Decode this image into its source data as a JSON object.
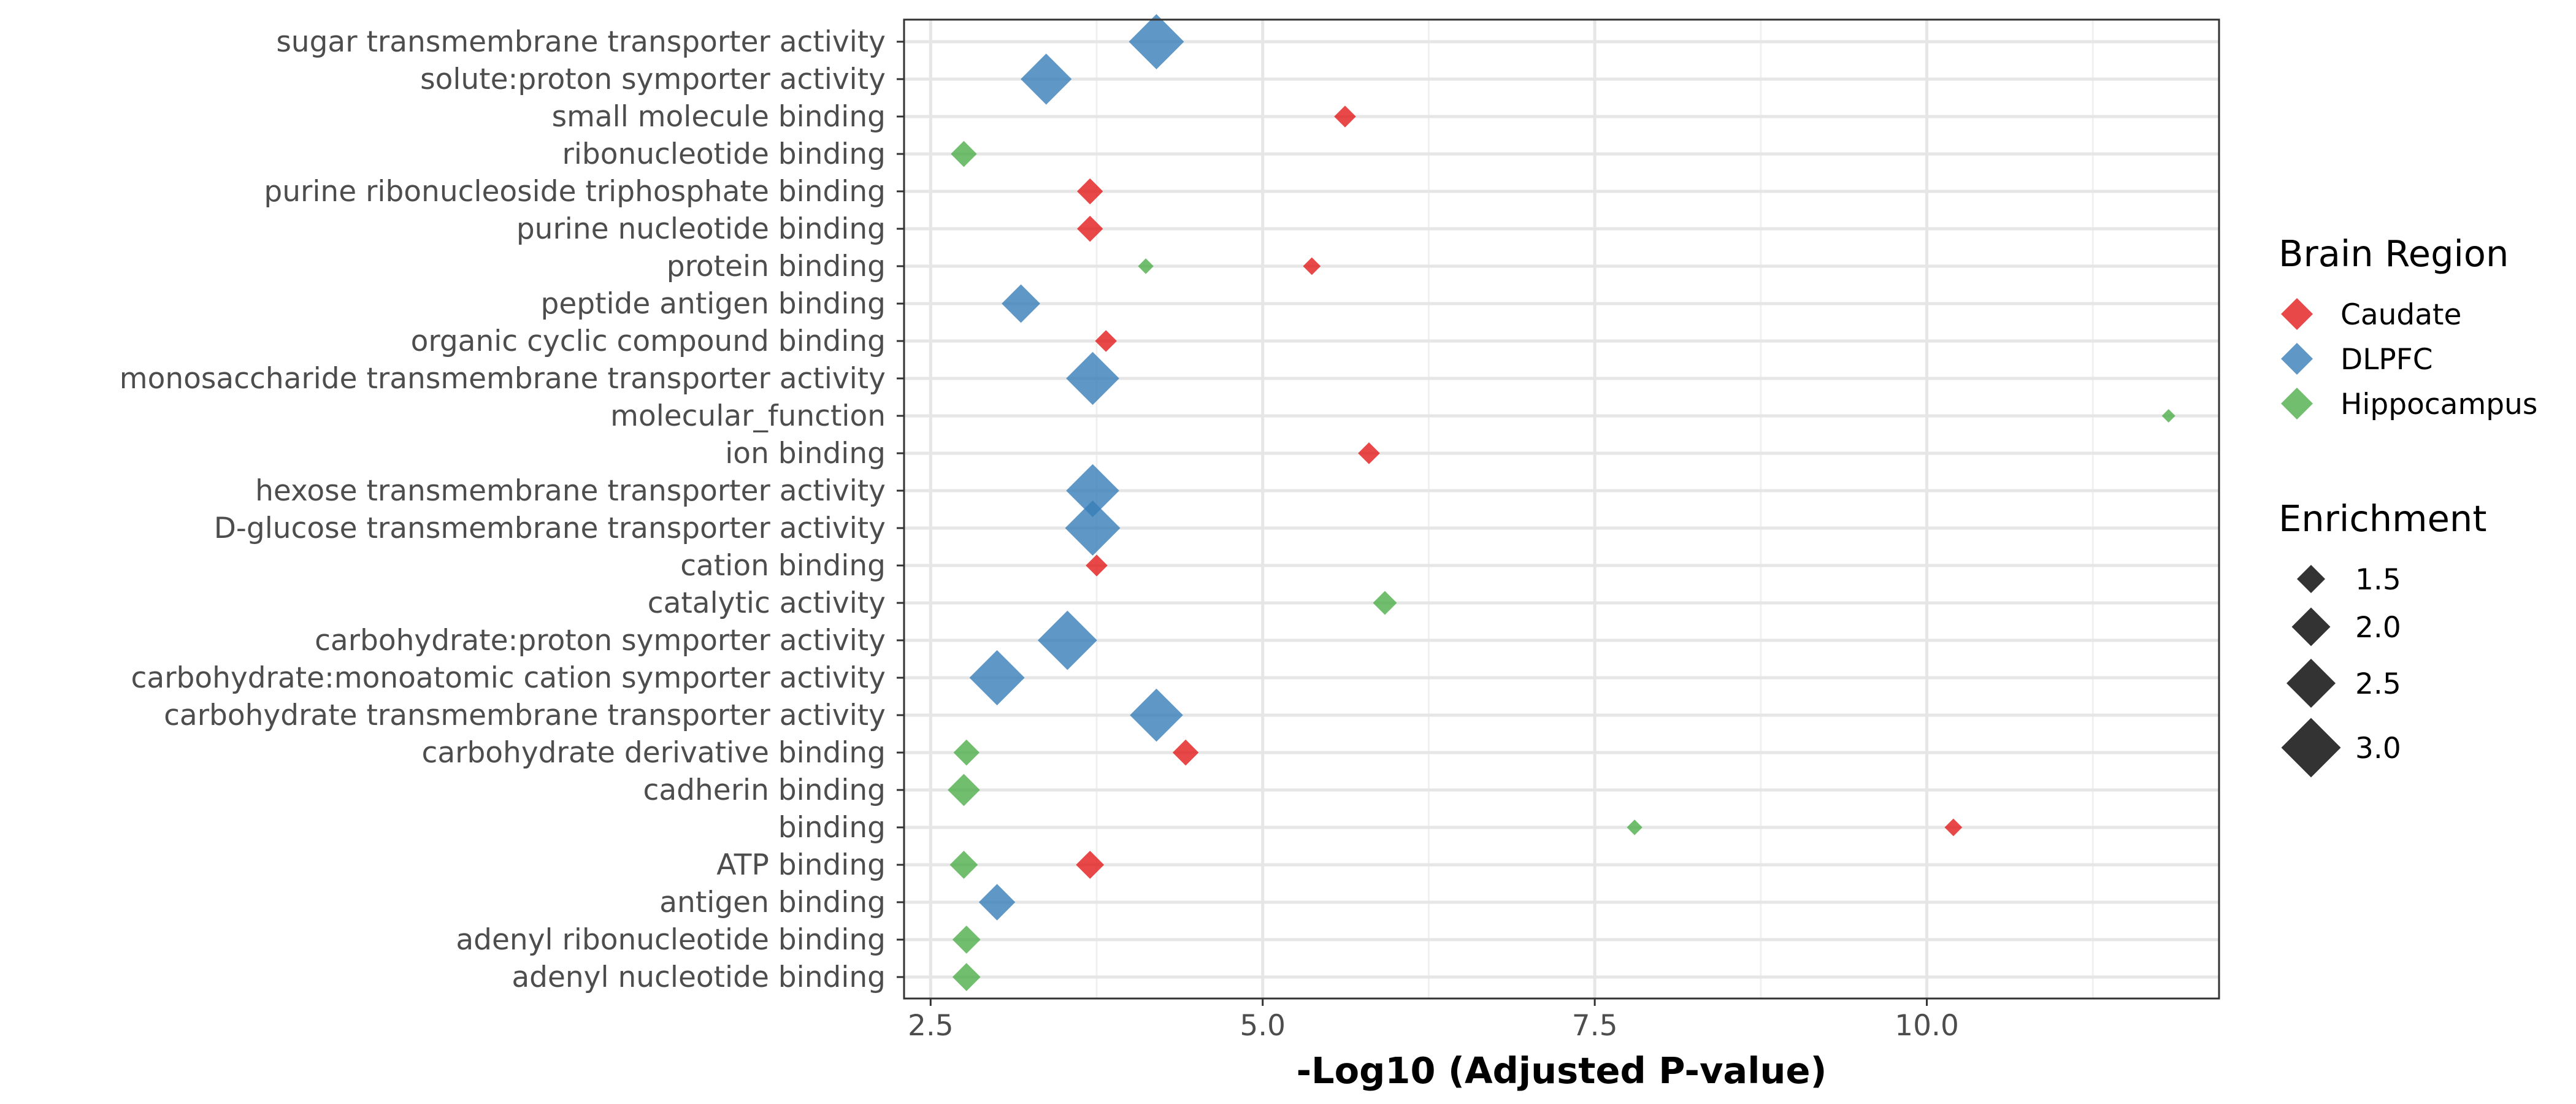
{
  "chart_data": {
    "type": "scatter",
    "xlabel": "-Log10 (Adjusted P-value)",
    "xlim": [
      2.3,
      12.2
    ],
    "x_ticks": [
      "2.5",
      "5.0",
      "7.5",
      "10.0"
    ],
    "x_tick_values": [
      2.5,
      5.0,
      7.5,
      10.0
    ],
    "grid": true,
    "legend_position": "right",
    "categories": [
      "sugar transmembrane transporter activity",
      "solute:proton symporter activity",
      "small molecule binding",
      "ribonucleotide binding",
      "purine ribonucleoside triphosphate binding",
      "purine nucleotide binding",
      "protein binding",
      "peptide antigen binding",
      "organic cyclic compound binding",
      "monosaccharide transmembrane transporter activity",
      "molecular_function",
      "ion binding",
      "hexose transmembrane transporter activity",
      "D-glucose transmembrane transporter activity",
      "cation binding",
      "catalytic activity",
      "carbohydrate:proton symporter activity",
      "carbohydrate:monoatomic cation symporter activity",
      "carbohydrate transmembrane transporter activity",
      "carbohydrate derivative binding",
      "cadherin binding",
      "binding",
      "ATP binding",
      "antigen binding",
      "adenyl ribonucleotide binding",
      "adenyl nucleotide binding"
    ],
    "color_legend": {
      "title": "Brain Region",
      "items": [
        {
          "name": "Caudate",
          "color": "#e41a1c"
        },
        {
          "name": "DLPFC",
          "color": "#377eb8"
        },
        {
          "name": "Hippocampus",
          "color": "#4daf4a"
        }
      ]
    },
    "size_legend": {
      "title": "Enrichment",
      "items": [
        {
          "label": "1.5",
          "value": 1.5
        },
        {
          "label": "2.0",
          "value": 2.0
        },
        {
          "label": "2.5",
          "value": 2.5
        },
        {
          "label": "3.0",
          "value": 3.0
        }
      ]
    },
    "series": [
      {
        "name": "Caudate",
        "color": "#e41a1c",
        "points": [
          {
            "category": "small molecule binding",
            "x": 5.62,
            "enrichment": 1.4
          },
          {
            "category": "purine ribonucleoside triphosphate binding",
            "x": 3.7,
            "enrichment": 1.6
          },
          {
            "category": "purine nucleotide binding",
            "x": 3.7,
            "enrichment": 1.6
          },
          {
            "category": "protein binding",
            "x": 5.37,
            "enrichment": 1.2
          },
          {
            "category": "organic cyclic compound binding",
            "x": 3.82,
            "enrichment": 1.4
          },
          {
            "category": "ion binding",
            "x": 5.8,
            "enrichment": 1.4
          },
          {
            "category": "cation binding",
            "x": 3.75,
            "enrichment": 1.4
          },
          {
            "category": "carbohydrate derivative binding",
            "x": 4.42,
            "enrichment": 1.6
          },
          {
            "category": "binding",
            "x": 10.2,
            "enrichment": 1.2
          },
          {
            "category": "ATP binding",
            "x": 3.7,
            "enrichment": 1.7
          }
        ]
      },
      {
        "name": "DLPFC",
        "color": "#377eb8",
        "points": [
          {
            "category": "sugar transmembrane transporter activity",
            "x": 4.2,
            "enrichment": 3.0
          },
          {
            "category": "solute:proton symporter activity",
            "x": 3.37,
            "enrichment": 2.8
          },
          {
            "category": "peptide antigen binding",
            "x": 3.18,
            "enrichment": 2.2
          },
          {
            "category": "monosaccharide transmembrane transporter activity",
            "x": 3.72,
            "enrichment": 2.9
          },
          {
            "category": "hexose transmembrane transporter activity",
            "x": 3.72,
            "enrichment": 2.9
          },
          {
            "category": "D-glucose transmembrane transporter activity",
            "x": 3.72,
            "enrichment": 3.0
          },
          {
            "category": "carbohydrate:proton symporter activity",
            "x": 3.53,
            "enrichment": 3.2
          },
          {
            "category": "carbohydrate:monoatomic cation symporter activity",
            "x": 3.0,
            "enrichment": 3.0
          },
          {
            "category": "carbohydrate transmembrane transporter activity",
            "x": 4.2,
            "enrichment": 2.9
          },
          {
            "category": "antigen binding",
            "x": 3.0,
            "enrichment": 2.1
          }
        ]
      },
      {
        "name": "Hippocampus",
        "color": "#4daf4a",
        "points": [
          {
            "category": "ribonucleotide binding",
            "x": 2.75,
            "enrichment": 1.6
          },
          {
            "category": "protein binding",
            "x": 4.12,
            "enrichment": 1.1
          },
          {
            "category": "molecular_function",
            "x": 11.82,
            "enrichment": 1.0
          },
          {
            "category": "catalytic activity",
            "x": 5.92,
            "enrichment": 1.5
          },
          {
            "category": "carbohydrate derivative binding",
            "x": 2.77,
            "enrichment": 1.6
          },
          {
            "category": "cadherin binding",
            "x": 2.75,
            "enrichment": 1.9
          },
          {
            "category": "binding",
            "x": 7.8,
            "enrichment": 1.1
          },
          {
            "category": "ATP binding",
            "x": 2.75,
            "enrichment": 1.7
          },
          {
            "category": "adenyl ribonucleotide binding",
            "x": 2.77,
            "enrichment": 1.7
          },
          {
            "category": "adenyl nucleotide binding",
            "x": 2.77,
            "enrichment": 1.7
          }
        ]
      }
    ]
  }
}
